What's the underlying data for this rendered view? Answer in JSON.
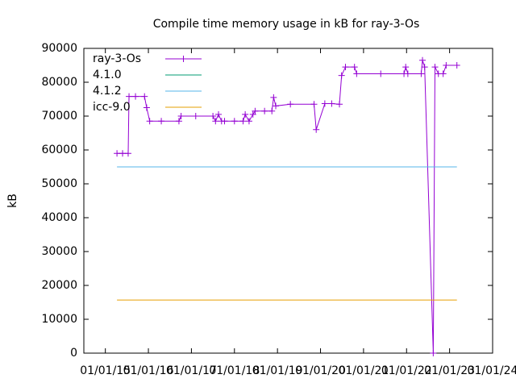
{
  "chart_data": {
    "type": "line",
    "title": "Compile time memory usage in kB for ray-3-Os",
    "y_label": "kB",
    "xlim": [
      2014.5,
      2024
    ],
    "xticks": [
      {
        "value": 2015,
        "label": "01/01/15"
      },
      {
        "value": 2016,
        "label": "01/01/16"
      },
      {
        "value": 2017,
        "label": "01/01/17"
      },
      {
        "value": 2018,
        "label": "01/01/18"
      },
      {
        "value": 2019,
        "label": "01/01/19"
      },
      {
        "value": 2020,
        "label": "01/01/20"
      },
      {
        "value": 2021,
        "label": "01/01/21"
      },
      {
        "value": 2022,
        "label": "01/01/22"
      },
      {
        "value": 2023,
        "label": "01/01/23"
      },
      {
        "value": 2024,
        "label": "01/01/24"
      }
    ],
    "ylim": [
      0,
      90000
    ],
    "yticks": [
      0,
      10000,
      20000,
      30000,
      40000,
      50000,
      60000,
      70000,
      80000,
      90000
    ],
    "legend": "top-left",
    "series": [
      {
        "name": "ray-3-Os",
        "color": "#9400d3",
        "markers": true,
        "x": [
          2015.27,
          2015.4,
          2015.53,
          2015.55,
          2015.7,
          2015.91,
          2015.96,
          2016.03,
          2016.3,
          2016.71,
          2016.76,
          2017.1,
          2017.5,
          2017.56,
          2017.63,
          2017.7,
          2017.77,
          2018.0,
          2018.2,
          2018.25,
          2018.34,
          2018.43,
          2018.48,
          2018.7,
          2018.87,
          2018.91,
          2018.96,
          2019.3,
          2019.85,
          2019.9,
          2020.1,
          2020.26,
          2020.44,
          2020.49,
          2020.58,
          2020.79,
          2020.84,
          2021.4,
          2021.94,
          2021.98,
          2022.03,
          2022.34,
          2022.37,
          2022.42,
          2022.62,
          2022.66,
          2022.74,
          2022.85,
          2022.92,
          2023.17
        ],
        "values": [
          59000,
          59000,
          59000,
          75800,
          75800,
          75800,
          72500,
          68500,
          68500,
          68500,
          70000,
          70000,
          70000,
          68500,
          70500,
          68500,
          68500,
          68500,
          68500,
          70500,
          68500,
          70500,
          71500,
          71500,
          71500,
          75500,
          73000,
          73500,
          73500,
          66000,
          73700,
          73700,
          73500,
          82000,
          84500,
          84500,
          82500,
          82500,
          82500,
          84500,
          82500,
          82500,
          86500,
          84500,
          0,
          84500,
          82500,
          82500,
          85000,
          85000
        ]
      },
      {
        "name": "4.1.0",
        "color": "#009e73",
        "x": [],
        "values": []
      },
      {
        "name": "4.1.2",
        "color": "#56b4e9",
        "x": [
          2015.27,
          2023.17
        ],
        "values": [
          55000,
          55000
        ]
      },
      {
        "name": "icc-9.0",
        "color": "#e69f00",
        "x": [
          2015.27,
          2023.17
        ],
        "values": [
          15700,
          15700
        ]
      }
    ]
  }
}
